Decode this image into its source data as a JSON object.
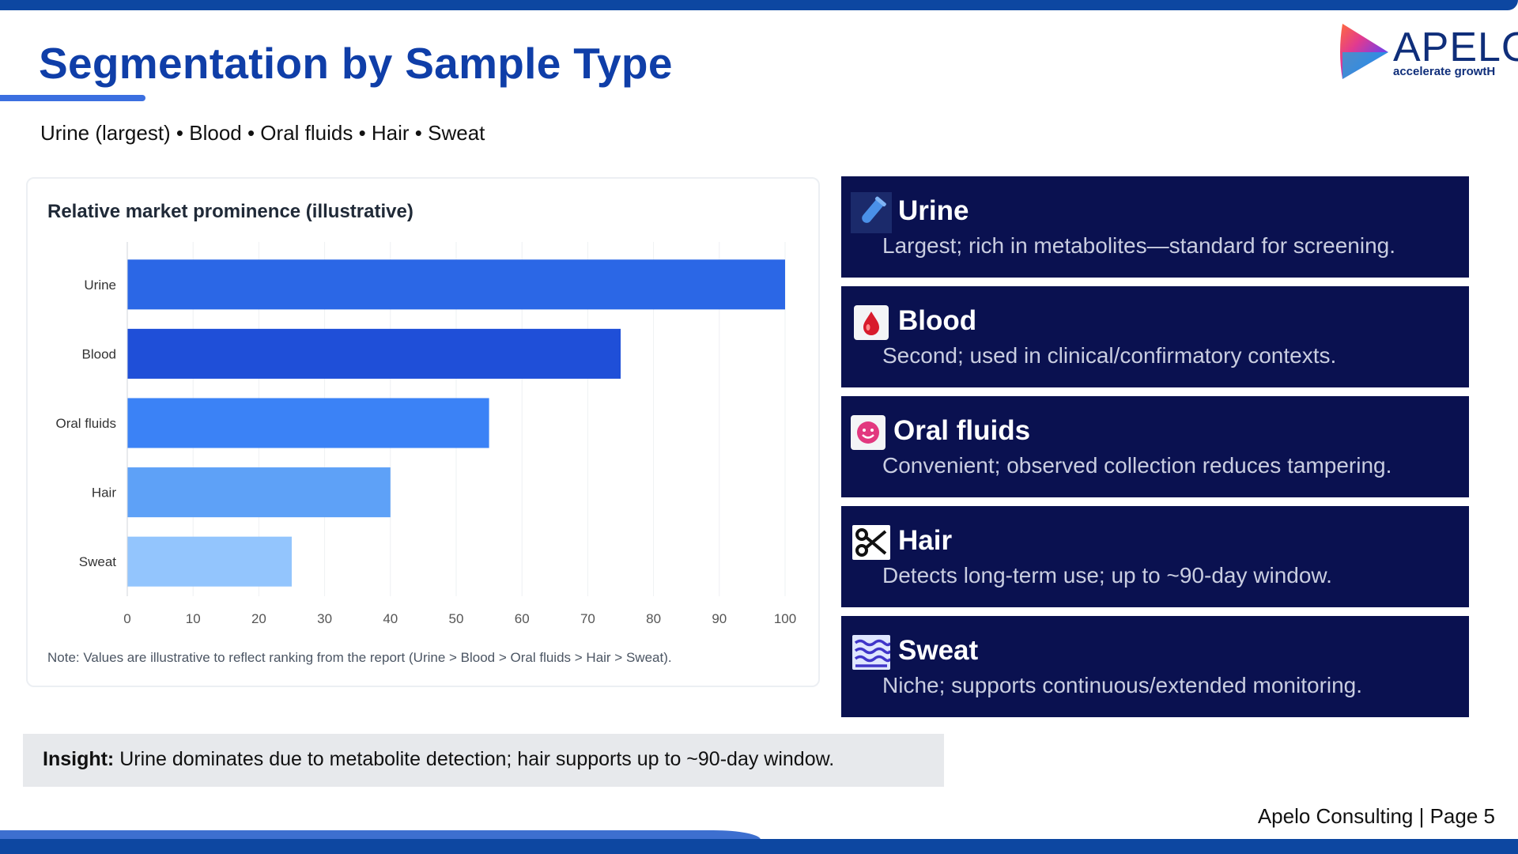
{
  "slide": {
    "title": "Segmentation by Sample Type",
    "subtitle": "Urine (largest) • Blood • Oral fluids • Hair • Sweat"
  },
  "logo": {
    "word": "APELO",
    "tagline": "accelerate growtH"
  },
  "chart_data": {
    "type": "bar",
    "orientation": "horizontal",
    "title": "Relative market prominence (illustrative)",
    "categories": [
      "Urine",
      "Blood",
      "Oral fluids",
      "Hair",
      "Sweat"
    ],
    "values": [
      100,
      75,
      55,
      40,
      25
    ],
    "bar_colors": [
      "#2b67e6",
      "#1f4fd8",
      "#3b82f6",
      "#5ea1f7",
      "#93c5fd"
    ],
    "xlim": [
      0,
      100
    ],
    "xticks": [
      0,
      10,
      20,
      30,
      40,
      50,
      60,
      70,
      80,
      90,
      100
    ],
    "grid": true,
    "note": "Note: Values are illustrative to reflect ranking from the report (Urine > Blood > Oral fluids > Hair > Sweat)."
  },
  "segments": [
    {
      "name": "Urine",
      "desc": "Largest; rich in metabolites—standard for screening.",
      "icon": "test-tube-icon"
    },
    {
      "name": "Blood",
      "desc": "Second; used in clinical/confirmatory contexts.",
      "icon": "blood-drop-icon"
    },
    {
      "name": "Oral fluids",
      "desc": "Convenient; observed collection reduces tampering.",
      "icon": "smiley-icon"
    },
    {
      "name": "Hair",
      "desc": "Detects long-term use; up to ~90-day window.",
      "icon": "scissors-icon"
    },
    {
      "name": "Sweat",
      "desc": "Niche; supports continuous/extended monitoring.",
      "icon": "waves-icon"
    }
  ],
  "insight": {
    "label": "Insight:",
    "text": " Urine dominates due to metabolite detection; hair supports up to ~90-day window."
  },
  "footer": {
    "text": "Apelo Consulting | Page 5"
  },
  "colors": {
    "title": "#0f3ea8",
    "card_bg": "#0a1150",
    "bars": "#2b67e6"
  }
}
